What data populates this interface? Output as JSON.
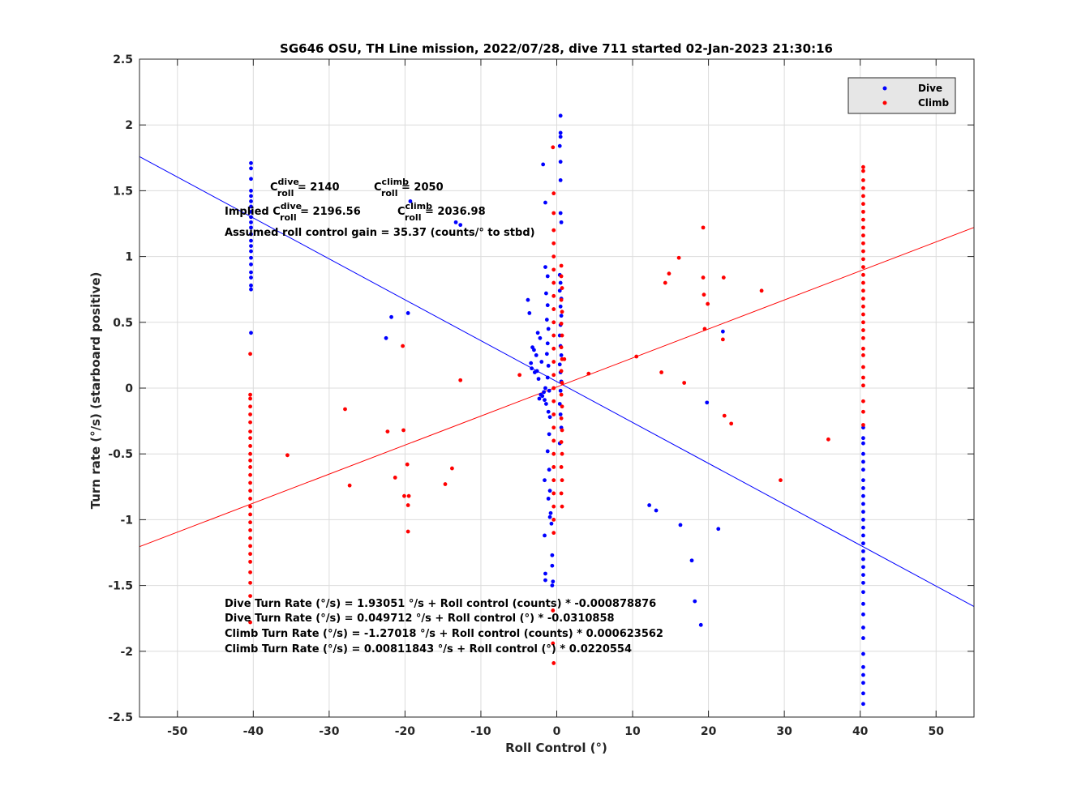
{
  "chart_data": {
    "type": "scatter",
    "title": "SG646 OSU, TH Line mission, 2022/07/28, dive 711 started 02-Jan-2023 21:30:16",
    "xlabel": "Roll Control (°)",
    "ylabel": "Turn rate (°/s) (starboard positive)",
    "xlim": [
      -55,
      55
    ],
    "ylim": [
      -2.5,
      2.5
    ],
    "xticks": [
      -50,
      -40,
      -30,
      -20,
      -10,
      0,
      10,
      20,
      30,
      40,
      50
    ],
    "yticks": [
      -2.5,
      -2,
      -1.5,
      -1,
      -0.5,
      0,
      0.5,
      1,
      1.5,
      2,
      2.5
    ],
    "xtick_labels": [
      "-50",
      "-40",
      "-30",
      "-20",
      "-10",
      "0",
      "10",
      "20",
      "30",
      "40",
      "50"
    ],
    "ytick_labels": [
      "-2.5",
      "-2",
      "-1.5",
      "-1",
      "-0.5",
      "0",
      "0.5",
      "1",
      "1.5",
      "2",
      "2.5"
    ],
    "grid": true,
    "legend_position": "top-right",
    "series": [
      {
        "name": "Dive",
        "color": "#0000ff",
        "fit_intercept": 0.049712,
        "fit_slope": -0.0310858,
        "points": [
          [
            -40.3,
            1.71
          ],
          [
            -40.3,
            1.67
          ],
          [
            -40.3,
            1.59
          ],
          [
            -40.3,
            1.5
          ],
          [
            -40.3,
            1.46
          ],
          [
            -40.3,
            1.42
          ],
          [
            -40.3,
            1.38
          ],
          [
            -40.3,
            1.34
          ],
          [
            -40.3,
            1.3
          ],
          [
            -40.3,
            1.26
          ],
          [
            -40.3,
            1.22
          ],
          [
            -40.3,
            1.17
          ],
          [
            -40.3,
            1.12
          ],
          [
            -40.3,
            1.08
          ],
          [
            -40.3,
            1.04
          ],
          [
            -40.3,
            0.99
          ],
          [
            -40.3,
            0.94
          ],
          [
            -40.3,
            0.88
          ],
          [
            -40.3,
            0.84
          ],
          [
            -40.3,
            0.78
          ],
          [
            -40.3,
            0.75
          ],
          [
            -40.3,
            0.42
          ],
          [
            -22.5,
            0.38
          ],
          [
            -21.8,
            0.54
          ],
          [
            -19.6,
            0.57
          ],
          [
            -19.3,
            1.42
          ],
          [
            -13.3,
            1.26
          ],
          [
            -12.7,
            1.24
          ],
          [
            -3.8,
            0.67
          ],
          [
            -3.6,
            0.57
          ],
          [
            -3.2,
            0.31
          ],
          [
            -3.0,
            0.29
          ],
          [
            -2.7,
            0.25
          ],
          [
            -2.5,
            0.42
          ],
          [
            -2.2,
            0.38
          ],
          [
            -2.0,
            0.2
          ],
          [
            -3.4,
            0.19
          ],
          [
            -3.3,
            0.15
          ],
          [
            -2.9,
            0.12
          ],
          [
            -2.6,
            0.13
          ],
          [
            -2.4,
            0.07
          ],
          [
            -2.1,
            -0.05
          ],
          [
            -1.9,
            -0.06
          ],
          [
            -1.7,
            -0.03
          ],
          [
            -1.5,
            0.0
          ],
          [
            -1.6,
            -0.09
          ],
          [
            -1.4,
            -0.12
          ],
          [
            -2.3,
            -0.08
          ],
          [
            -1.8,
            1.7
          ],
          [
            -1.5,
            1.41
          ],
          [
            -1.5,
            0.92
          ],
          [
            -1.2,
            0.85
          ],
          [
            -1.4,
            0.72
          ],
          [
            -1.2,
            0.63
          ],
          [
            -1.3,
            0.52
          ],
          [
            -1.1,
            0.45
          ],
          [
            -1.2,
            0.34
          ],
          [
            -1.3,
            0.26
          ],
          [
            -1.1,
            0.17
          ],
          [
            -1.2,
            0.08
          ],
          [
            -1.0,
            -0.02
          ],
          [
            -1.1,
            -0.18
          ],
          [
            -0.9,
            -0.22
          ],
          [
            -1.0,
            -0.35
          ],
          [
            -1.2,
            -0.48
          ],
          [
            -1.0,
            -0.62
          ],
          [
            -1.6,
            -0.7
          ],
          [
            -0.9,
            -0.78
          ],
          [
            -1.1,
            -0.84
          ],
          [
            -0.8,
            -0.95
          ],
          [
            -0.9,
            -0.98
          ],
          [
            -0.7,
            -1.03
          ],
          [
            -1.6,
            -1.12
          ],
          [
            -1.5,
            -1.41
          ],
          [
            -1.5,
            -1.46
          ],
          [
            -0.6,
            -1.27
          ],
          [
            -0.6,
            -1.35
          ],
          [
            -0.5,
            -1.47
          ],
          [
            -0.6,
            -1.5
          ],
          [
            0.5,
            2.07
          ],
          [
            0.5,
            1.94
          ],
          [
            0.5,
            1.91
          ],
          [
            0.4,
            1.84
          ],
          [
            0.5,
            1.72
          ],
          [
            0.5,
            1.58
          ],
          [
            0.5,
            1.33
          ],
          [
            0.6,
            1.26
          ],
          [
            0.4,
            0.86
          ],
          [
            0.5,
            0.8
          ],
          [
            0.4,
            0.74
          ],
          [
            0.6,
            0.68
          ],
          [
            0.5,
            0.62
          ],
          [
            0.6,
            0.55
          ],
          [
            0.5,
            0.48
          ],
          [
            0.4,
            0.4
          ],
          [
            0.5,
            0.32
          ],
          [
            0.6,
            0.25
          ],
          [
            0.4,
            0.18
          ],
          [
            0.5,
            0.12
          ],
          [
            0.6,
            0.05
          ],
          [
            0.5,
            -0.02
          ],
          [
            0.4,
            -0.12
          ],
          [
            0.5,
            -0.2
          ],
          [
            0.6,
            -0.3
          ],
          [
            0.4,
            -0.42
          ],
          [
            12.2,
            -0.89
          ],
          [
            13.1,
            -0.93
          ],
          [
            16.3,
            -1.04
          ],
          [
            17.8,
            -1.31
          ],
          [
            18.2,
            -1.62
          ],
          [
            19.0,
            -1.8
          ],
          [
            19.8,
            -0.11
          ],
          [
            21.3,
            -1.07
          ],
          [
            21.9,
            0.43
          ],
          [
            40.4,
            -0.3
          ],
          [
            40.4,
            -0.38
          ],
          [
            40.4,
            -0.42
          ],
          [
            40.4,
            -0.5
          ],
          [
            40.4,
            -0.56
          ],
          [
            40.4,
            -0.62
          ],
          [
            40.4,
            -0.7
          ],
          [
            40.4,
            -0.76
          ],
          [
            40.4,
            -0.82
          ],
          [
            40.4,
            -0.88
          ],
          [
            40.4,
            -0.94
          ],
          [
            40.4,
            -1.0
          ],
          [
            40.4,
            -1.06
          ],
          [
            40.4,
            -1.12
          ],
          [
            40.4,
            -1.18
          ],
          [
            40.4,
            -1.24
          ],
          [
            40.4,
            -1.3
          ],
          [
            40.4,
            -1.36
          ],
          [
            40.4,
            -1.42
          ],
          [
            40.4,
            -1.48
          ],
          [
            40.4,
            -1.55
          ],
          [
            40.4,
            -1.64
          ],
          [
            40.4,
            -1.72
          ],
          [
            40.4,
            -1.82
          ],
          [
            40.4,
            -1.9
          ],
          [
            40.4,
            -2.02
          ],
          [
            40.4,
            -2.12
          ],
          [
            40.4,
            -2.18
          ],
          [
            40.4,
            -2.24
          ],
          [
            40.4,
            -2.32
          ],
          [
            40.4,
            -2.4
          ]
        ]
      },
      {
        "name": "Climb",
        "color": "#ff0000",
        "fit_intercept": 0.00811843,
        "fit_slope": 0.0220554,
        "points": [
          [
            -40.4,
            0.26
          ],
          [
            -40.4,
            -0.05
          ],
          [
            -40.4,
            -0.08
          ],
          [
            -40.4,
            -0.14
          ],
          [
            -40.4,
            -0.2
          ],
          [
            -40.4,
            -0.26
          ],
          [
            -40.4,
            -0.33
          ],
          [
            -40.4,
            -0.38
          ],
          [
            -40.4,
            -0.44
          ],
          [
            -40.4,
            -0.5
          ],
          [
            -40.4,
            -0.55
          ],
          [
            -40.4,
            -0.6
          ],
          [
            -40.4,
            -0.66
          ],
          [
            -40.4,
            -0.72
          ],
          [
            -40.4,
            -0.78
          ],
          [
            -40.4,
            -0.84
          ],
          [
            -40.4,
            -0.9
          ],
          [
            -40.4,
            -0.96
          ],
          [
            -40.4,
            -1.02
          ],
          [
            -40.4,
            -1.08
          ],
          [
            -40.4,
            -1.14
          ],
          [
            -40.4,
            -1.2
          ],
          [
            -40.4,
            -1.26
          ],
          [
            -40.4,
            -1.32
          ],
          [
            -40.4,
            -1.4
          ],
          [
            -40.4,
            -1.48
          ],
          [
            -40.4,
            -1.58
          ],
          [
            -40.4,
            -1.78
          ],
          [
            -35.5,
            -0.51
          ],
          [
            -27.9,
            -0.16
          ],
          [
            -27.3,
            -0.74
          ],
          [
            -22.3,
            -0.33
          ],
          [
            -21.3,
            -0.68
          ],
          [
            -20.3,
            0.32
          ],
          [
            -20.2,
            -0.32
          ],
          [
            -20.1,
            -0.82
          ],
          [
            -19.7,
            -0.58
          ],
          [
            -19.6,
            -0.89
          ],
          [
            -19.5,
            -0.82
          ],
          [
            -19.6,
            -1.09
          ],
          [
            -14.7,
            -0.73
          ],
          [
            -13.8,
            -0.61
          ],
          [
            -12.7,
            0.06
          ],
          [
            -4.9,
            0.1
          ],
          [
            -0.5,
            1.83
          ],
          [
            -0.4,
            1.48
          ],
          [
            -0.4,
            1.33
          ],
          [
            -0.4,
            1.2
          ],
          [
            -0.4,
            1.1
          ],
          [
            -0.4,
            1.0
          ],
          [
            -0.4,
            0.9
          ],
          [
            -0.4,
            0.8
          ],
          [
            -0.4,
            0.7
          ],
          [
            -0.4,
            0.6
          ],
          [
            -0.4,
            0.5
          ],
          [
            -0.4,
            0.4
          ],
          [
            -0.4,
            0.3
          ],
          [
            -0.4,
            0.2
          ],
          [
            -0.4,
            0.1
          ],
          [
            -0.4,
            0.0
          ],
          [
            -0.4,
            -0.1
          ],
          [
            -0.4,
            -0.2
          ],
          [
            -0.4,
            -0.3
          ],
          [
            -0.4,
            -0.4
          ],
          [
            -0.4,
            -0.5
          ],
          [
            -0.4,
            -0.6
          ],
          [
            -0.4,
            -0.7
          ],
          [
            -0.4,
            -0.8
          ],
          [
            -0.4,
            -0.9
          ],
          [
            -0.4,
            -1.0
          ],
          [
            -0.4,
            -1.1
          ],
          [
            -0.5,
            -1.69
          ],
          [
            -0.5,
            -1.94
          ],
          [
            -0.4,
            -2.09
          ],
          [
            0.6,
            0.93
          ],
          [
            0.6,
            0.85
          ],
          [
            0.7,
            0.76
          ],
          [
            0.6,
            0.67
          ],
          [
            0.7,
            0.58
          ],
          [
            0.6,
            0.49
          ],
          [
            0.7,
            0.4
          ],
          [
            0.6,
            0.31
          ],
          [
            0.7,
            0.22
          ],
          [
            0.6,
            0.13
          ],
          [
            0.7,
            0.04
          ],
          [
            0.6,
            -0.05
          ],
          [
            0.7,
            -0.14
          ],
          [
            0.6,
            -0.23
          ],
          [
            0.7,
            -0.32
          ],
          [
            0.6,
            -0.41
          ],
          [
            0.7,
            -0.5
          ],
          [
            0.6,
            -0.6
          ],
          [
            0.7,
            -0.7
          ],
          [
            0.6,
            -0.8
          ],
          [
            0.7,
            -0.9
          ],
          [
            1.0,
            0.22
          ],
          [
            4.2,
            0.11
          ],
          [
            10.5,
            0.24
          ],
          [
            13.8,
            0.12
          ],
          [
            14.3,
            0.8
          ],
          [
            14.8,
            0.87
          ],
          [
            16.1,
            0.99
          ],
          [
            16.8,
            0.04
          ],
          [
            19.3,
            1.22
          ],
          [
            19.3,
            0.84
          ],
          [
            19.4,
            0.71
          ],
          [
            19.5,
            0.45
          ],
          [
            19.9,
            0.64
          ],
          [
            21.9,
            0.37
          ],
          [
            22.0,
            0.84
          ],
          [
            22.1,
            -0.21
          ],
          [
            23.0,
            -0.27
          ],
          [
            27.0,
            0.74
          ],
          [
            29.5,
            -0.7
          ],
          [
            35.8,
            -0.39
          ],
          [
            40.4,
            1.68
          ],
          [
            40.4,
            1.65
          ],
          [
            40.4,
            1.58
          ],
          [
            40.4,
            1.52
          ],
          [
            40.4,
            1.46
          ],
          [
            40.4,
            1.4
          ],
          [
            40.4,
            1.34
          ],
          [
            40.4,
            1.28
          ],
          [
            40.4,
            1.22
          ],
          [
            40.4,
            1.16
          ],
          [
            40.4,
            1.1
          ],
          [
            40.4,
            1.04
          ],
          [
            40.4,
            0.98
          ],
          [
            40.4,
            0.92
          ],
          [
            40.4,
            0.86
          ],
          [
            40.4,
            0.8
          ],
          [
            40.4,
            0.74
          ],
          [
            40.4,
            0.68
          ],
          [
            40.4,
            0.62
          ],
          [
            40.4,
            0.56
          ],
          [
            40.4,
            0.5
          ],
          [
            40.4,
            0.44
          ],
          [
            40.4,
            0.38
          ],
          [
            40.4,
            0.3
          ],
          [
            40.4,
            0.25
          ],
          [
            40.4,
            0.16
          ],
          [
            40.4,
            0.08
          ],
          [
            40.4,
            0.02
          ],
          [
            40.4,
            -0.1
          ],
          [
            40.4,
            -0.18
          ],
          [
            40.4,
            -0.28
          ]
        ]
      }
    ],
    "annotations": {
      "croll_dive_base": "C",
      "croll_dive_sup": "dive",
      "croll_dive_sub": "roll",
      "croll_dive_value": " = 2140",
      "croll_climb_base": "C",
      "croll_climb_sup": "climb",
      "croll_climb_sub": "roll",
      "croll_climb_value": " = 2050",
      "implied_prefix": "Implied C",
      "implied_dive_sup": "dive",
      "implied_dive_sub": "roll",
      "implied_dive_value": " = 2196.56",
      "implied_climb_base": "C",
      "implied_climb_sup": "climb",
      "implied_climb_sub": "roll",
      "implied_climb_value": " = 2036.98",
      "gain": "Assumed roll control gain = 35.37 (counts/° to stbd)",
      "fit_lines": [
        "Dive Turn Rate (°/s) = 1.93051 °/s + Roll control (counts) * -0.000878876",
        "Dive Turn Rate (°/s) = 0.049712  °/s + Roll control (°) * -0.0310858",
        "Climb Turn Rate (°/s) = -1.27018 °/s + Roll control (counts) * 0.000623562",
        "Climb Turn Rate (°/s) = 0.00811843 °/s + Roll control (°) * 0.0220554"
      ]
    }
  }
}
